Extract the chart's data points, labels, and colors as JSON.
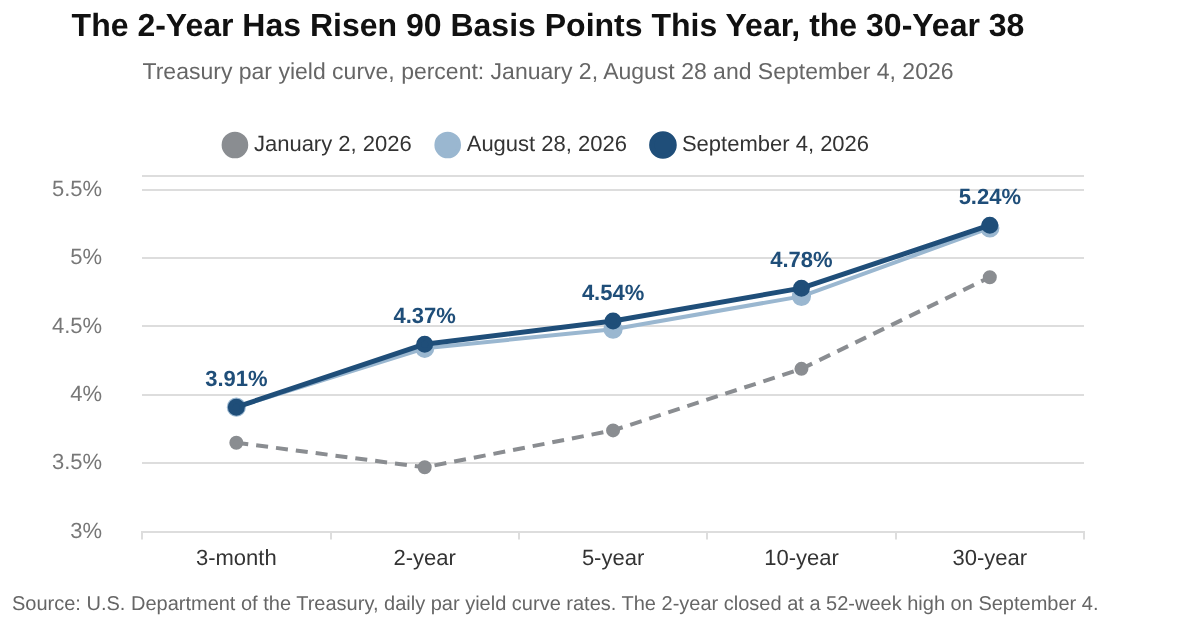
{
  "chart_data": {
    "type": "line",
    "title": "The 2-Year Has Risen 90 Basis Points This Year, the 30-Year 38",
    "subtitle": "Treasury par yield curve, percent: January 2, August 28 and September 4, 2026",
    "categories": [
      "3-month",
      "2-year",
      "5-year",
      "10-year",
      "30-year"
    ],
    "series": [
      {
        "name": "January 2, 2026",
        "color": "#8a8d91",
        "values": [
          3.65,
          3.47,
          3.74,
          4.19,
          4.86
        ],
        "line_style": "dashed"
      },
      {
        "name": "August 28, 2026",
        "color": "#9ab7d0",
        "values": [
          3.91,
          4.34,
          4.48,
          4.72,
          5.22
        ]
      },
      {
        "name": "September 4, 2026",
        "color": "#1f4e79",
        "values": [
          3.91,
          4.37,
          4.54,
          4.78,
          5.24
        ],
        "value_labels": [
          "3.91%",
          "4.37%",
          "4.54%",
          "4.78%",
          "5.24%"
        ]
      }
    ],
    "ylim": [
      3,
      5.6
    ],
    "yticks": [
      {
        "value": 3,
        "label": "3%"
      },
      {
        "value": 3.5,
        "label": "3.5%"
      },
      {
        "value": 4,
        "label": "4%"
      },
      {
        "value": 4.5,
        "label": "4.5%"
      },
      {
        "value": 5,
        "label": "5%"
      },
      {
        "value": 5.5,
        "label": "5.5%"
      },
      {
        "value": 5.6,
        "label": null
      }
    ],
    "grid": "y",
    "legend": "top",
    "marker": "circle",
    "line_style": "solid",
    "annotations": [
      "Source: U.S. Department of the Treasury, daily par yield curve rates. The 2-year closed at a 52-week high on September 4."
    ]
  }
}
